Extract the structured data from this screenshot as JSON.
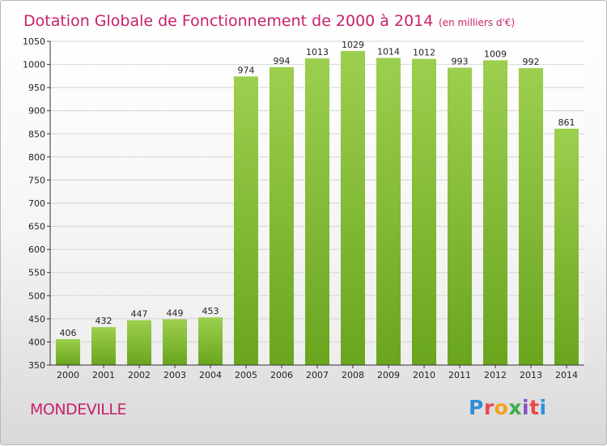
{
  "chart_data": {
    "type": "bar",
    "title": "Dotation Globale de Fonctionnement de 2000 à 2014",
    "unit_label": "(en milliers d'€)",
    "categories": [
      "2000",
      "2001",
      "2002",
      "2003",
      "2004",
      "2005",
      "2006",
      "2007",
      "2008",
      "2009",
      "2010",
      "2011",
      "2012",
      "2013",
      "2014"
    ],
    "values": [
      406,
      432,
      447,
      449,
      453,
      974,
      994,
      1013,
      1029,
      1014,
      1012,
      993,
      1009,
      992,
      861
    ],
    "ylim": [
      350,
      1050
    ],
    "yticks": [
      350,
      400,
      450,
      500,
      550,
      600,
      650,
      700,
      750,
      800,
      850,
      900,
      950,
      1000,
      1050
    ],
    "grid": true,
    "bar_color_top": "#9ccf4e",
    "bar_color_bottom": "#6aa51e",
    "title_color": "#c8216a"
  },
  "footer": {
    "city": "MONDEVILLE",
    "logo_text": "Proxiti",
    "logo_colors": [
      "#2f8fd6",
      "#e8474c",
      "#f0a21e",
      "#3aae4a",
      "#8a4fc9",
      "#e8474c",
      "#2f8fd6"
    ]
  }
}
